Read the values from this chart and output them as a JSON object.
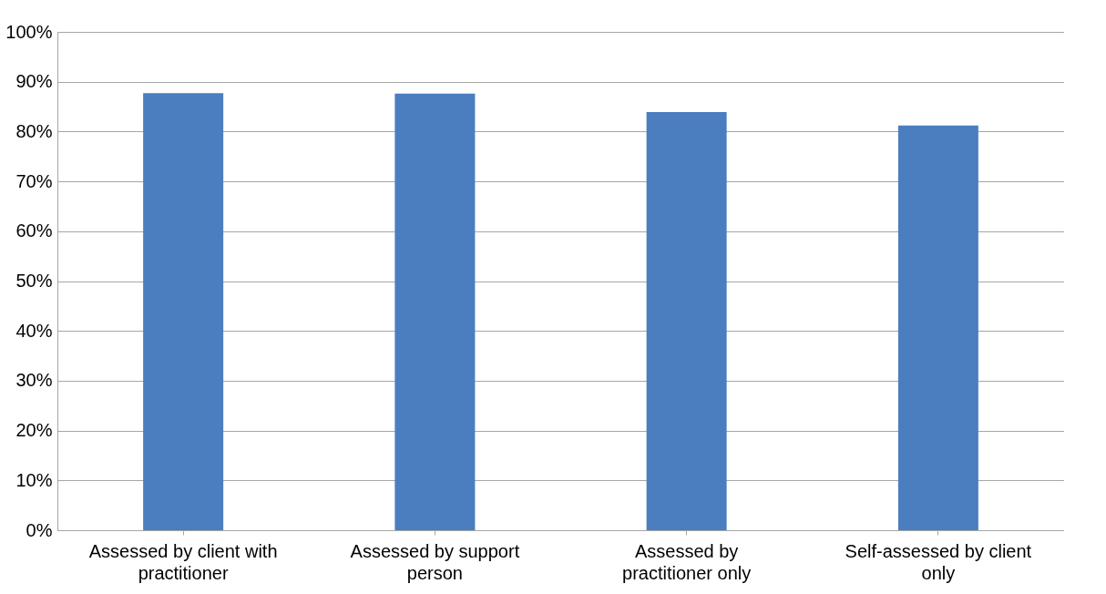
{
  "chart_data": {
    "type": "bar",
    "categories": [
      "Assessed by client with practitioner",
      "Assessed by  support person",
      "Assessed by practitioner only",
      "Self-assessed by client only"
    ],
    "values": [
      87.7,
      87.6,
      83.9,
      81.2
    ],
    "color": "#4a7ebf",
    "ylim": [
      0,
      100
    ],
    "yticks": [
      {
        "value": 0,
        "label": "0%"
      },
      {
        "value": 10,
        "label": "10%"
      },
      {
        "value": 20,
        "label": "20%"
      },
      {
        "value": 30,
        "label": "30%"
      },
      {
        "value": 40,
        "label": "40%"
      },
      {
        "value": 50,
        "label": "50%"
      },
      {
        "value": 60,
        "label": "60%"
      },
      {
        "value": 70,
        "label": "70%"
      },
      {
        "value": 80,
        "label": "80%"
      },
      {
        "value": 90,
        "label": "90%"
      },
      {
        "value": 100,
        "label": "100%"
      }
    ],
    "grid": "y"
  }
}
